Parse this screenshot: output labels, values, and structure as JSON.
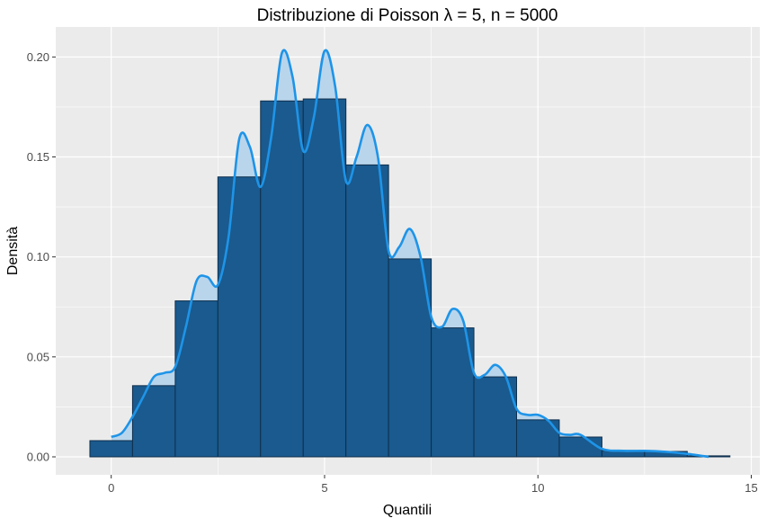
{
  "chart_data": {
    "type": "bar",
    "title": "Distribuzione di Poisson λ = 5, n = 5000",
    "xlabel": "Quantili",
    "ylabel": "Densità",
    "xlim": [
      -1.3,
      15.2
    ],
    "ylim": [
      -0.009,
      0.215
    ],
    "x_ticks": [
      0,
      5,
      10,
      15
    ],
    "x_tick_labels": [
      "0",
      "5",
      "10",
      "15"
    ],
    "y_ticks": [
      0,
      0.05,
      0.1,
      0.15,
      0.2
    ],
    "y_tick_labels": [
      "0.00",
      "0.05",
      "0.10",
      "0.15",
      "0.20"
    ],
    "grid": true,
    "histogram": {
      "categories": [
        0,
        1,
        2,
        3,
        4,
        5,
        6,
        7,
        8,
        9,
        10,
        11,
        12,
        13,
        14
      ],
      "values": [
        0.0081,
        0.0356,
        0.078,
        0.14,
        0.178,
        0.179,
        0.146,
        0.099,
        0.0645,
        0.04,
        0.0185,
        0.0099,
        0.0032,
        0.0027,
        0.0005
      ],
      "bin_width": 1
    },
    "density_curve": {
      "x": [
        0,
        0.25,
        0.5,
        0.75,
        1,
        1.25,
        1.5,
        1.75,
        2,
        2.25,
        2.5,
        2.75,
        3,
        3.25,
        3.5,
        3.75,
        4,
        4.25,
        4.5,
        4.75,
        5,
        5.25,
        5.5,
        5.75,
        6,
        6.25,
        6.5,
        6.75,
        7,
        7.25,
        7.5,
        7.75,
        8,
        8.25,
        8.5,
        8.75,
        9,
        9.25,
        9.5,
        9.75,
        10,
        10.25,
        10.5,
        10.75,
        11,
        11.5,
        12,
        12.5,
        13,
        13.5,
        14
      ],
      "y": [
        0.01,
        0.012,
        0.02,
        0.03,
        0.04,
        0.042,
        0.045,
        0.065,
        0.088,
        0.09,
        0.086,
        0.11,
        0.159,
        0.155,
        0.135,
        0.16,
        0.202,
        0.19,
        0.153,
        0.17,
        0.203,
        0.185,
        0.138,
        0.15,
        0.166,
        0.15,
        0.103,
        0.105,
        0.114,
        0.1,
        0.07,
        0.065,
        0.074,
        0.068,
        0.042,
        0.041,
        0.046,
        0.04,
        0.024,
        0.021,
        0.021,
        0.018,
        0.012,
        0.011,
        0.011,
        0.004,
        0.003,
        0.003,
        0.0025,
        0.0015,
        0.0
      ]
    },
    "colors": {
      "panel": "#EBEBEB",
      "bar_fill": "#1A5A8E",
      "bar_outline": "#0E2E4C",
      "curve_line": "#1E94E8",
      "curve_fill": "#B9D5EC"
    }
  }
}
